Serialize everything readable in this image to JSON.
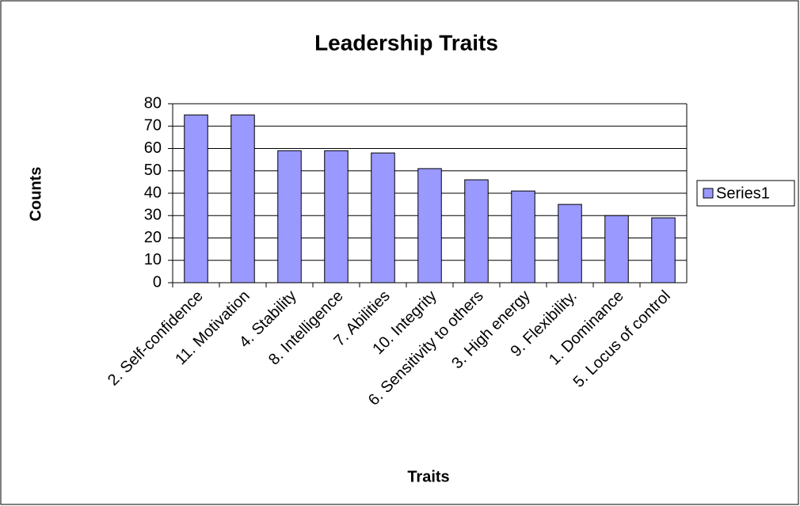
{
  "chart_data": {
    "type": "bar",
    "title": "Leadership Traits",
    "x_label": "Traits",
    "y_label": "Counts",
    "categories": [
      "2. Self-confidence",
      "11. Motivation",
      "4. Stability",
      "8. Intelligence",
      "7. Abilities",
      "10. Integrity",
      "6. Sensitivity to others",
      "3. High energy",
      "9. Flexibility.",
      "1. Dominance",
      "5. Locus of control"
    ],
    "series": [
      {
        "name": "Series1",
        "color": "#9999ff",
        "values": [
          75,
          75,
          59,
          59,
          58,
          51,
          46,
          41,
          35,
          30,
          29
        ]
      }
    ],
    "ylim": [
      0,
      80
    ],
    "yticks": [
      0,
      10,
      20,
      30,
      40,
      50,
      60,
      70,
      80
    ],
    "grid": true,
    "legend": "right"
  }
}
